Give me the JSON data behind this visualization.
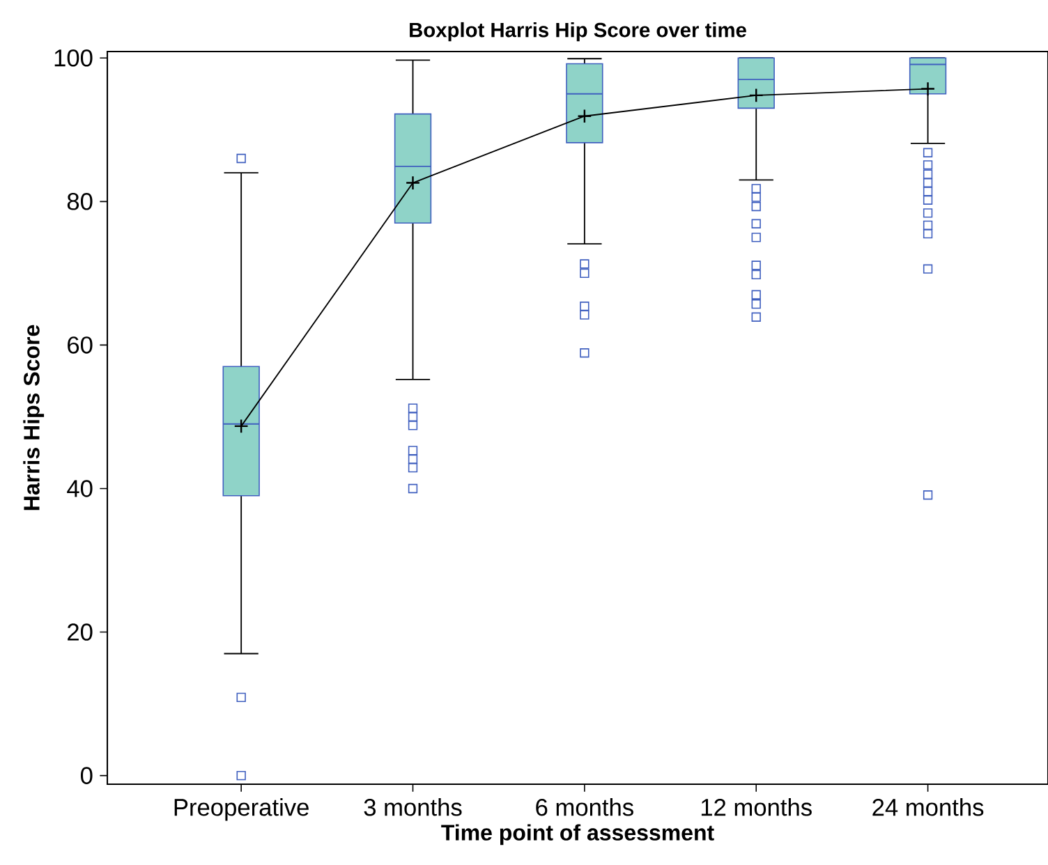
{
  "chart_data": {
    "type": "box",
    "title": "Boxplot Harris Hip Score over time",
    "xlabel": "Time point of assessment",
    "ylabel": "Harris Hips Score",
    "categories": [
      "Preoperative",
      "3 months",
      "6 months",
      "12 months",
      "24 months"
    ],
    "ylim": [
      -1.2,
      100.9
    ],
    "yticks": [
      0,
      20,
      40,
      60,
      80,
      100
    ],
    "series": [
      {
        "color": "#8fd3c8",
        "boxes": [
          {
            "low": 17,
            "q1": 39,
            "median": 49,
            "q3": 57,
            "high": 84,
            "outliers": [
              86,
              10.9,
              0
            ]
          },
          {
            "low": 55.2,
            "q1": 77,
            "median": 84.9,
            "q3": 92.2,
            "high": 99.7,
            "outliers": [
              51.2,
              50,
              48.8,
              45.3,
              44.1,
              42.9,
              40
            ]
          },
          {
            "low": 74.1,
            "q1": 88.2,
            "median": 95,
            "q3": 99.2,
            "high": 99.9,
            "outliers": [
              71.3,
              70,
              65.4,
              64.2,
              58.9
            ]
          },
          {
            "low": 83,
            "q1": 93,
            "median": 97,
            "q3": 100,
            "high": 100,
            "outliers": [
              81.8,
              80.6,
              79.3,
              76.9,
              75,
              71.1,
              69.8,
              67,
              65.7,
              63.9
            ]
          },
          {
            "low": 88.1,
            "q1": 95,
            "median": 99.1,
            "q3": 100,
            "high": 100,
            "outliers": [
              86.8,
              85.1,
              83.8,
              82.6,
              81.4,
              80.2,
              78.4,
              76.7,
              75.5,
              70.6,
              39.1
            ]
          }
        ]
      },
      {
        "type": "line",
        "color": "#000000",
        "marker": "cross",
        "values": [
          48.7,
          82.6,
          91.9,
          94.8,
          95.7
        ]
      }
    ]
  }
}
